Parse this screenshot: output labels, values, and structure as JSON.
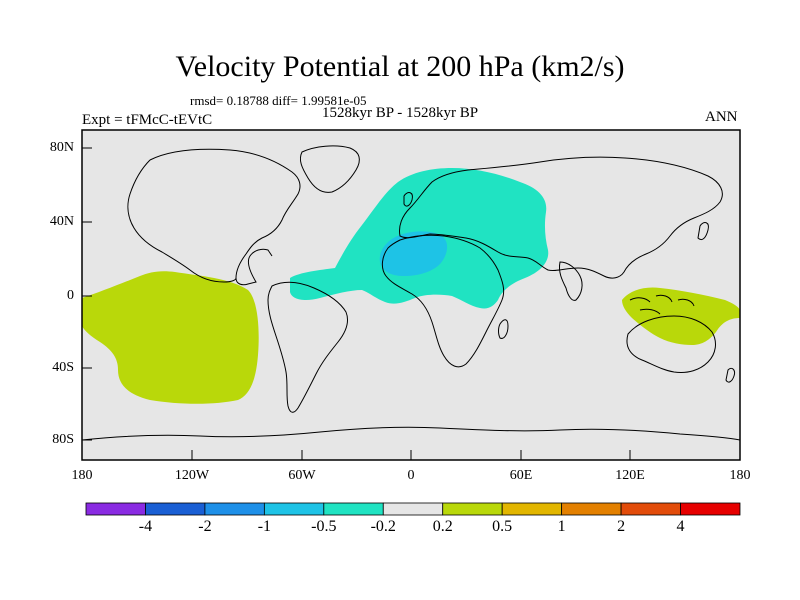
{
  "title": "Velocity Potential at 200 hPa (km2/s)",
  "subtitle": "rmsd= 0.18788 diff= 1.99581e-05",
  "period": "1528kyr BP - 1528kyr BP",
  "expt": "Expt = tFMcC-tEVtC",
  "season": "ANN",
  "lat_labels": [
    "80N",
    "40N",
    "0",
    "40S",
    "80S"
  ],
  "lon_labels": [
    "180",
    "120W",
    "60W",
    "0",
    "60E",
    "120E",
    "180"
  ],
  "colorbar": {
    "labels": [
      "-4",
      "-2",
      "-1",
      "-0.5",
      "-0.2",
      "0.2",
      "0.5",
      "1",
      "2",
      "4"
    ],
    "colors": [
      "#8a2be2",
      "#1a5fd4",
      "#1e90e8",
      "#1ec3e6",
      "#20e3c2",
      "#e6e6e6",
      "#b9d80a",
      "#e2b600",
      "#e38000",
      "#e24c0a",
      "#e60000"
    ]
  },
  "colors": {
    "background": "#e6e6e6",
    "positive": "#b9d80a",
    "negative_weak": "#20e3c2",
    "negative_mid": "#1ec3e6"
  }
}
